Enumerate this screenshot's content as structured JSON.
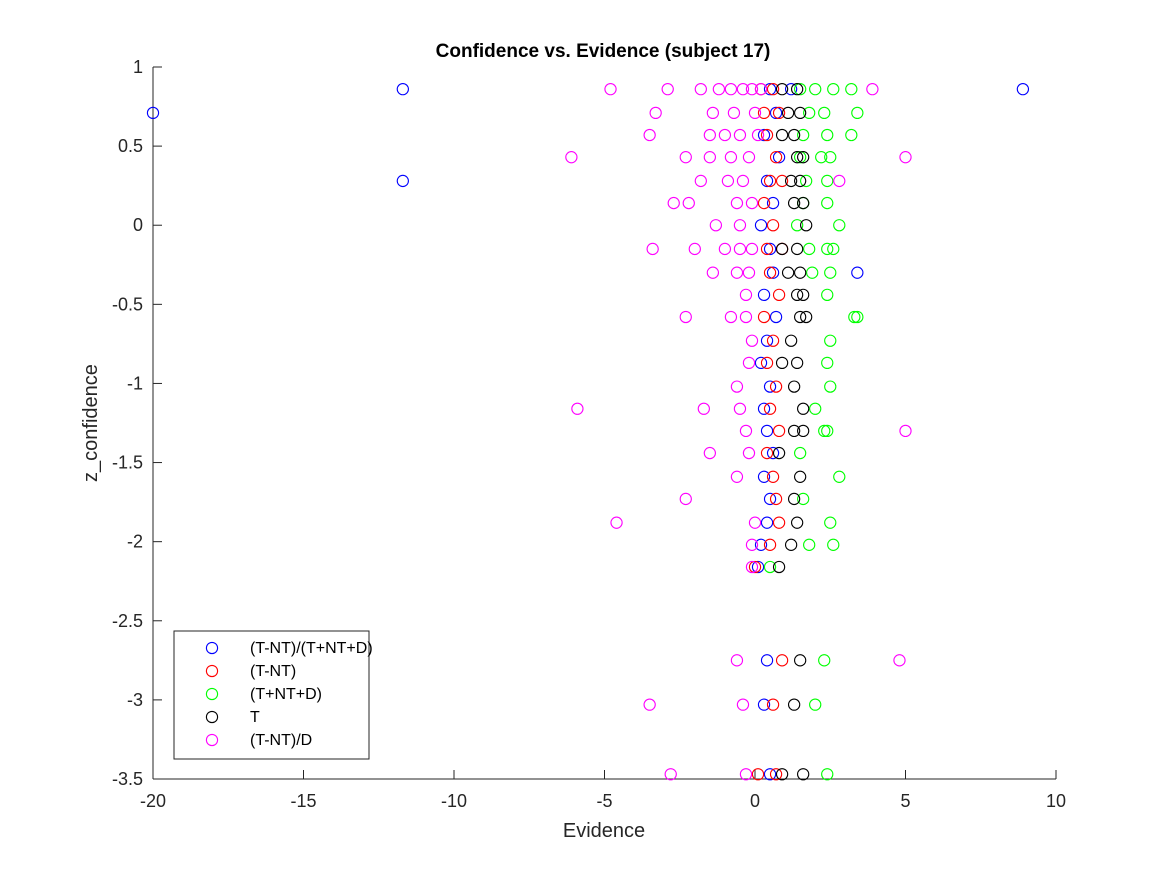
{
  "chart_data": {
    "type": "scatter",
    "title": "Confidence vs. Evidence (subject 17)",
    "xlabel": "Evidence",
    "ylabel": "z_confidence",
    "xlim": [
      -20,
      10
    ],
    "ylim": [
      -3.5,
      1
    ],
    "xticks": [
      -20,
      -15,
      -10,
      -5,
      0,
      5,
      10
    ],
    "xtick_labels": [
      "-20",
      "-15",
      "-10",
      "-5",
      "0",
      "5",
      "10"
    ],
    "yticks": [
      -3.5,
      -3,
      -2.5,
      -2,
      -1.5,
      -1,
      -0.5,
      0,
      0.5,
      1
    ],
    "ytick_labels": [
      "-3.5",
      "-3",
      "-2.5",
      "-2",
      "-1.5",
      "-1",
      "-0.5",
      "0",
      "0.5",
      "1"
    ],
    "grid": false,
    "legend_position": "bottom-left",
    "marker": "open-circle",
    "series": [
      {
        "name": "(T-NT)/(T+NT+D)",
        "color": "#0000ff",
        "points": [
          [
            -20.0,
            0.71
          ],
          [
            -11.7,
            0.86
          ],
          [
            -11.7,
            0.28
          ],
          [
            8.9,
            0.86
          ],
          [
            0.5,
            0.86
          ],
          [
            1.2,
            0.86
          ],
          [
            0.7,
            0.71
          ],
          [
            0.3,
            0.57
          ],
          [
            0.8,
            0.43
          ],
          [
            0.4,
            0.28
          ],
          [
            0.6,
            0.14
          ],
          [
            0.2,
            0.0
          ],
          [
            0.5,
            -0.15
          ],
          [
            3.4,
            -0.3
          ],
          [
            0.6,
            -0.3
          ],
          [
            0.3,
            -0.44
          ],
          [
            0.7,
            -0.58
          ],
          [
            0.4,
            -0.73
          ],
          [
            0.2,
            -0.87
          ],
          [
            0.5,
            -1.02
          ],
          [
            0.3,
            -1.16
          ],
          [
            0.4,
            -1.3
          ],
          [
            0.6,
            -1.44
          ],
          [
            0.3,
            -1.59
          ],
          [
            0.5,
            -1.73
          ],
          [
            0.4,
            -1.88
          ],
          [
            0.2,
            -2.02
          ],
          [
            0.1,
            -2.16
          ],
          [
            0.4,
            -2.75
          ],
          [
            0.3,
            -3.03
          ],
          [
            0.5,
            -3.47
          ]
        ]
      },
      {
        "name": "(T-NT)",
        "color": "#ff0000",
        "points": [
          [
            0.2,
            0.86
          ],
          [
            0.6,
            0.86
          ],
          [
            0.3,
            0.71
          ],
          [
            0.8,
            0.71
          ],
          [
            0.4,
            0.57
          ],
          [
            0.7,
            0.43
          ],
          [
            0.5,
            0.28
          ],
          [
            0.9,
            0.28
          ],
          [
            0.3,
            0.14
          ],
          [
            0.6,
            0.0
          ],
          [
            0.4,
            -0.15
          ],
          [
            0.9,
            -0.15
          ],
          [
            0.5,
            -0.3
          ],
          [
            0.8,
            -0.44
          ],
          [
            0.3,
            -0.58
          ],
          [
            0.6,
            -0.73
          ],
          [
            0.4,
            -0.87
          ],
          [
            0.7,
            -1.02
          ],
          [
            0.5,
            -1.16
          ],
          [
            0.8,
            -1.3
          ],
          [
            0.4,
            -1.44
          ],
          [
            0.6,
            -1.59
          ],
          [
            0.7,
            -1.73
          ],
          [
            0.8,
            -1.88
          ],
          [
            0.5,
            -2.02
          ],
          [
            0.0,
            -2.16
          ],
          [
            0.9,
            -2.75
          ],
          [
            0.6,
            -3.03
          ],
          [
            0.1,
            -3.47
          ],
          [
            0.7,
            -3.47
          ]
        ]
      },
      {
        "name": "(T+NT+D)",
        "color": "#00ff00",
        "points": [
          [
            1.5,
            0.86
          ],
          [
            2.0,
            0.86
          ],
          [
            2.6,
            0.86
          ],
          [
            3.2,
            0.86
          ],
          [
            1.8,
            0.71
          ],
          [
            2.3,
            0.71
          ],
          [
            3.4,
            0.71
          ],
          [
            1.6,
            0.57
          ],
          [
            2.4,
            0.57
          ],
          [
            3.2,
            0.57
          ],
          [
            1.5,
            0.43
          ],
          [
            2.2,
            0.43
          ],
          [
            2.5,
            0.43
          ],
          [
            1.7,
            0.28
          ],
          [
            2.4,
            0.28
          ],
          [
            1.6,
            0.14
          ],
          [
            2.4,
            0.14
          ],
          [
            2.8,
            0.0
          ],
          [
            1.4,
            0.0
          ],
          [
            1.8,
            -0.15
          ],
          [
            2.4,
            -0.15
          ],
          [
            2.6,
            -0.15
          ],
          [
            1.9,
            -0.3
          ],
          [
            2.5,
            -0.3
          ],
          [
            2.4,
            -0.44
          ],
          [
            3.4,
            -0.58
          ],
          [
            3.3,
            -0.58
          ],
          [
            2.5,
            -0.73
          ],
          [
            2.4,
            -0.87
          ],
          [
            2.5,
            -1.02
          ],
          [
            2.0,
            -1.16
          ],
          [
            2.3,
            -1.3
          ],
          [
            2.4,
            -1.3
          ],
          [
            1.5,
            -1.44
          ],
          [
            2.8,
            -1.59
          ],
          [
            1.6,
            -1.73
          ],
          [
            2.5,
            -1.88
          ],
          [
            2.6,
            -2.02
          ],
          [
            1.8,
            -2.02
          ],
          [
            0.5,
            -2.16
          ],
          [
            2.3,
            -2.75
          ],
          [
            2.0,
            -3.03
          ],
          [
            2.4,
            -3.47
          ]
        ]
      },
      {
        "name": "T",
        "color": "#000000",
        "points": [
          [
            0.9,
            0.86
          ],
          [
            1.4,
            0.86
          ],
          [
            1.5,
            0.71
          ],
          [
            1.1,
            0.71
          ],
          [
            1.3,
            0.57
          ],
          [
            0.9,
            0.57
          ],
          [
            1.4,
            0.43
          ],
          [
            1.6,
            0.43
          ],
          [
            1.2,
            0.28
          ],
          [
            1.5,
            0.28
          ],
          [
            1.3,
            0.14
          ],
          [
            1.6,
            0.14
          ],
          [
            1.7,
            0.0
          ],
          [
            1.4,
            -0.15
          ],
          [
            0.9,
            -0.15
          ],
          [
            1.1,
            -0.3
          ],
          [
            1.5,
            -0.3
          ],
          [
            1.4,
            -0.44
          ],
          [
            1.6,
            -0.44
          ],
          [
            1.5,
            -0.58
          ],
          [
            1.7,
            -0.58
          ],
          [
            1.2,
            -0.73
          ],
          [
            0.9,
            -0.87
          ],
          [
            1.4,
            -0.87
          ],
          [
            1.3,
            -1.02
          ],
          [
            1.6,
            -1.16
          ],
          [
            1.3,
            -1.3
          ],
          [
            1.6,
            -1.3
          ],
          [
            0.8,
            -1.44
          ],
          [
            1.5,
            -1.59
          ],
          [
            1.3,
            -1.73
          ],
          [
            1.4,
            -1.88
          ],
          [
            1.2,
            -2.02
          ],
          [
            0.8,
            -2.16
          ],
          [
            1.5,
            -2.75
          ],
          [
            1.3,
            -3.03
          ],
          [
            1.6,
            -3.47
          ],
          [
            0.9,
            -3.47
          ]
        ]
      },
      {
        "name": "(T-NT)/D",
        "color": "#ff00ff",
        "points": [
          [
            -4.8,
            0.86
          ],
          [
            -2.9,
            0.86
          ],
          [
            -1.8,
            0.86
          ],
          [
            -1.2,
            0.86
          ],
          [
            -0.8,
            0.86
          ],
          [
            -0.4,
            0.86
          ],
          [
            -0.1,
            0.86
          ],
          [
            0.2,
            0.86
          ],
          [
            3.9,
            0.86
          ],
          [
            -3.3,
            0.71
          ],
          [
            -1.4,
            0.71
          ],
          [
            -0.7,
            0.71
          ],
          [
            0.0,
            0.71
          ],
          [
            -3.5,
            0.57
          ],
          [
            -1.5,
            0.57
          ],
          [
            -1.0,
            0.57
          ],
          [
            -0.5,
            0.57
          ],
          [
            0.1,
            0.57
          ],
          [
            -6.1,
            0.43
          ],
          [
            -2.3,
            0.43
          ],
          [
            -1.5,
            0.43
          ],
          [
            -0.8,
            0.43
          ],
          [
            -0.2,
            0.43
          ],
          [
            5.0,
            0.43
          ],
          [
            -1.8,
            0.28
          ],
          [
            -0.9,
            0.28
          ],
          [
            -0.4,
            0.28
          ],
          [
            2.8,
            0.28
          ],
          [
            -2.7,
            0.14
          ],
          [
            -2.2,
            0.14
          ],
          [
            -0.6,
            0.14
          ],
          [
            -0.1,
            0.14
          ],
          [
            -1.3,
            0.0
          ],
          [
            -0.5,
            0.0
          ],
          [
            -3.4,
            -0.15
          ],
          [
            -2.0,
            -0.15
          ],
          [
            -1.0,
            -0.15
          ],
          [
            -0.5,
            -0.15
          ],
          [
            -0.1,
            -0.15
          ],
          [
            -1.4,
            -0.3
          ],
          [
            -0.6,
            -0.3
          ],
          [
            -0.2,
            -0.3
          ],
          [
            -0.3,
            -0.44
          ],
          [
            -2.3,
            -0.58
          ],
          [
            -0.8,
            -0.58
          ],
          [
            -0.3,
            -0.58
          ],
          [
            -0.1,
            -0.73
          ],
          [
            -0.2,
            -0.87
          ],
          [
            -0.6,
            -1.02
          ],
          [
            -5.9,
            -1.16
          ],
          [
            -1.7,
            -1.16
          ],
          [
            -0.5,
            -1.16
          ],
          [
            5.0,
            -1.3
          ],
          [
            -0.3,
            -1.3
          ],
          [
            -1.5,
            -1.44
          ],
          [
            -0.2,
            -1.44
          ],
          [
            -0.6,
            -1.59
          ],
          [
            -2.3,
            -1.73
          ],
          [
            -4.6,
            -1.88
          ],
          [
            0.0,
            -1.88
          ],
          [
            -0.1,
            -2.02
          ],
          [
            -0.1,
            -2.16
          ],
          [
            -0.6,
            -2.75
          ],
          [
            4.8,
            -2.75
          ],
          [
            -3.5,
            -3.03
          ],
          [
            -0.4,
            -3.03
          ],
          [
            -2.8,
            -3.47
          ],
          [
            -0.3,
            -3.47
          ]
        ]
      }
    ]
  }
}
